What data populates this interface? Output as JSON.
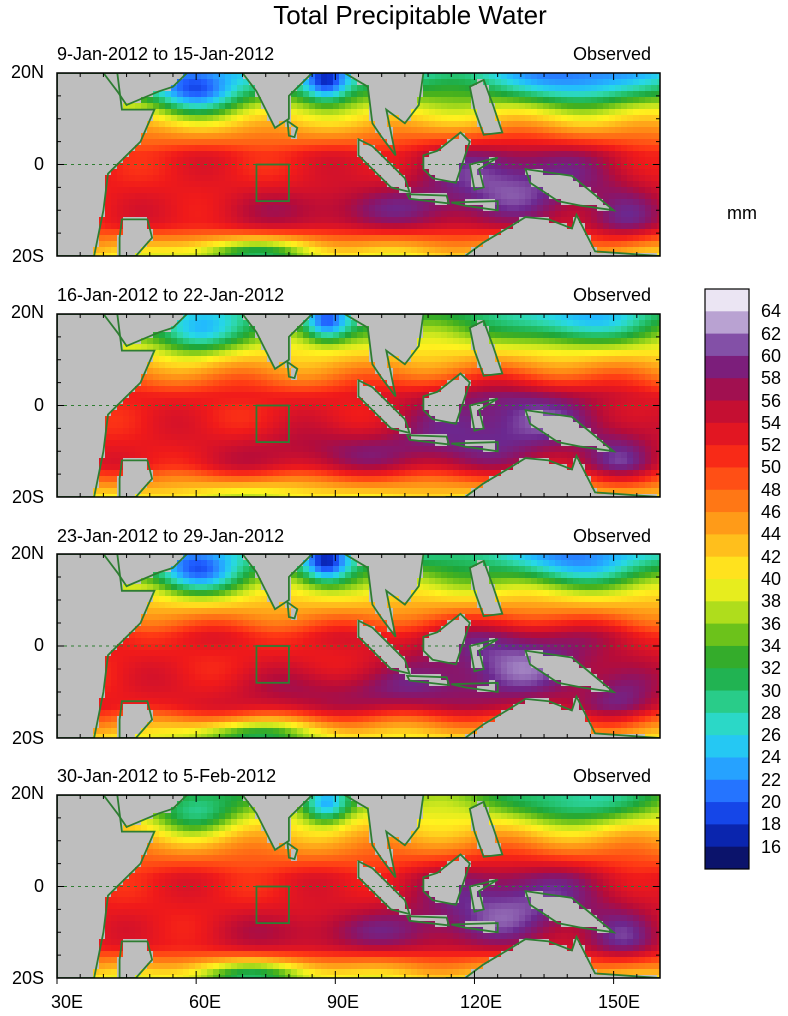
{
  "title": "Total Precipitable Water",
  "panels": [
    {
      "period": "9-Jan-2012 to 15-Jan-2012",
      "label": "Observed"
    },
    {
      "period": "16-Jan-2012 to 22-Jan-2012",
      "label": "Observed"
    },
    {
      "period": "23-Jan-2012 to 29-Jan-2012",
      "label": "Observed"
    },
    {
      "period": "30-Jan-2012 to 5-Feb-2012",
      "label": "Observed"
    }
  ],
  "lat_ticks": [
    "20N",
    "0",
    "20S"
  ],
  "lon_ticks": [
    "30E",
    "60E",
    "90E",
    "120E",
    "150E"
  ],
  "colorbar": {
    "unit": "mm",
    "labels": [
      "64",
      "62",
      "60",
      "58",
      "56",
      "54",
      "52",
      "50",
      "48",
      "46",
      "44",
      "42",
      "40",
      "38",
      "36",
      "34",
      "32",
      "30",
      "28",
      "26",
      "24",
      "22",
      "20",
      "18",
      "16"
    ],
    "range": [
      14,
      66
    ]
  },
  "colors": {
    "land": "#bebebe",
    "coast": "#2e7d32",
    "frame": "#000000"
  }
}
